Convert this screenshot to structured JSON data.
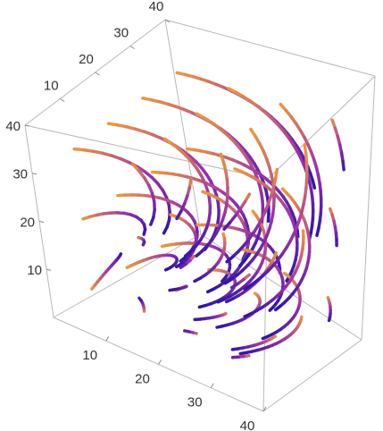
{
  "chart_data": {
    "type": "streamplot3d",
    "xlim": [
      0,
      40
    ],
    "ylim": [
      0,
      40
    ],
    "zlim": [
      0,
      40
    ],
    "xticks": [
      10,
      20,
      30,
      40
    ],
    "yticks": [
      10,
      20,
      30,
      40
    ],
    "zticks": [
      10,
      20,
      30,
      40
    ]
  }
}
